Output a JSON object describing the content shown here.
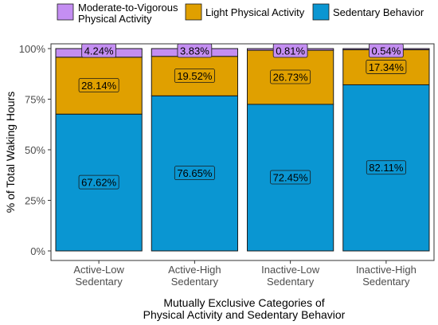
{
  "chart_data": {
    "type": "bar",
    "stacked": true,
    "categories": [
      [
        "Active-Low",
        "Sedentary"
      ],
      [
        "Active-High",
        "Sedentary"
      ],
      [
        "Inactive-Low",
        "Sedentary"
      ],
      [
        "Inactive-High",
        "Sedentary"
      ]
    ],
    "series": [
      {
        "name": "Sedentary Behavior",
        "color": "#0a96d2",
        "values": [
          67.62,
          76.65,
          72.45,
          82.11
        ],
        "labels": [
          "67.62%",
          "76.65%",
          "72.45%",
          "82.11%"
        ]
      },
      {
        "name": "Light Physical Activity",
        "color": "#e0a000",
        "values": [
          28.14,
          19.52,
          26.73,
          17.34
        ],
        "labels": [
          "28.14%",
          "19.52%",
          "26.73%",
          "17.34%"
        ]
      },
      {
        "name": "Moderate-to-Vigorous Physical Activity",
        "legend_lines": [
          "Moderate-to-Vigorous",
          "Physical Activity"
        ],
        "color": "#c48ef2",
        "values": [
          4.24,
          3.83,
          0.81,
          0.54
        ],
        "labels": [
          "4.24%",
          "3.83%",
          "0.81%",
          "0.54%"
        ]
      }
    ],
    "legend_order": [
      2,
      1,
      0
    ],
    "legend_position": "top",
    "ylabel": "% of Total Waking Hours",
    "xlabel_lines": [
      "Mutually Exclusive Categories of",
      "Physical Activity and Sedentary Behavior"
    ],
    "ylim": [
      0,
      100
    ],
    "yticks": [
      0,
      25,
      50,
      75,
      100
    ],
    "ytick_labels": [
      "0%",
      "25%",
      "50%",
      "75%",
      "100%"
    ],
    "grid": false
  }
}
